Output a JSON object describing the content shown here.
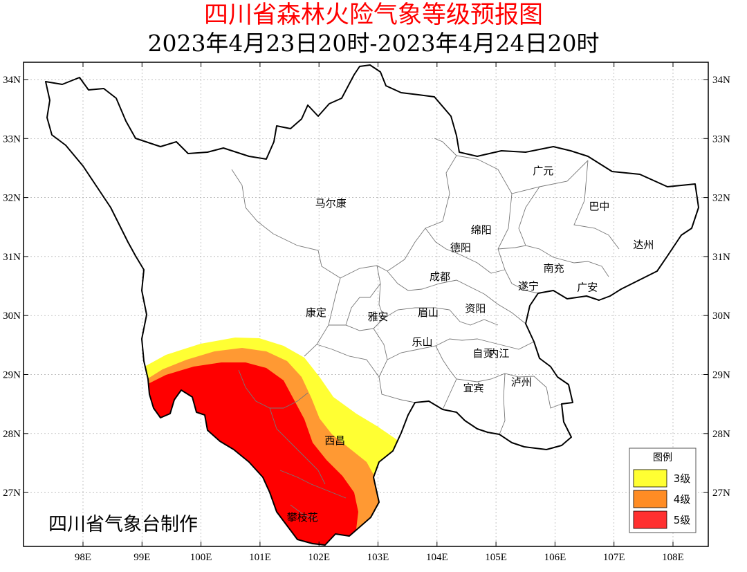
{
  "title": "四川省森林火险气象等级预报图",
  "subtitle": "2023年4月23日20时-2023年4月24日20时",
  "credit": "四川省气象台制作",
  "map": {
    "lon_ticks": [
      {
        "value": 98,
        "label": "98E"
      },
      {
        "value": 99,
        "label": "99E"
      },
      {
        "value": 100,
        "label": "100E"
      },
      {
        "value": 101,
        "label": "101E"
      },
      {
        "value": 102,
        "label": "102E"
      },
      {
        "value": 103,
        "label": "103E"
      },
      {
        "value": 104,
        "label": "104E"
      },
      {
        "value": 105,
        "label": "105E"
      },
      {
        "value": 106,
        "label": "106E"
      },
      {
        "value": 107,
        "label": "107E"
      },
      {
        "value": 108,
        "label": "108E"
      }
    ],
    "lat_ticks": [
      {
        "value": 34,
        "label": "34N"
      },
      {
        "value": 33,
        "label": "33N"
      },
      {
        "value": 32,
        "label": "32N"
      },
      {
        "value": 31,
        "label": "31N"
      },
      {
        "value": 30,
        "label": "30N"
      },
      {
        "value": 29,
        "label": "29N"
      },
      {
        "value": 28,
        "label": "28N"
      },
      {
        "value": 27,
        "label": "27N"
      }
    ],
    "cities": [
      {
        "name": "马尔康",
        "lon": 102.2,
        "lat": 31.9
      },
      {
        "name": "广元",
        "lon": 105.8,
        "lat": 32.45
      },
      {
        "name": "巴中",
        "lon": 106.75,
        "lat": 31.85
      },
      {
        "name": "绵阳",
        "lon": 104.75,
        "lat": 31.45
      },
      {
        "name": "达州",
        "lon": 107.5,
        "lat": 31.2
      },
      {
        "name": "德阳",
        "lon": 104.4,
        "lat": 31.15
      },
      {
        "name": "南充",
        "lon": 105.98,
        "lat": 30.8
      },
      {
        "name": "成都",
        "lon": 104.05,
        "lat": 30.66
      },
      {
        "name": "遂宁",
        "lon": 105.55,
        "lat": 30.5
      },
      {
        "name": "广安",
        "lon": 106.55,
        "lat": 30.48
      },
      {
        "name": "康定",
        "lon": 101.95,
        "lat": 30.05
      },
      {
        "name": "雅安",
        "lon": 103.0,
        "lat": 29.98
      },
      {
        "name": "眉山",
        "lon": 103.85,
        "lat": 30.05
      },
      {
        "name": "资阳",
        "lon": 104.65,
        "lat": 30.12
      },
      {
        "name": "乐山",
        "lon": 103.75,
        "lat": 29.55
      },
      {
        "name": "自贡",
        "lon": 104.78,
        "lat": 29.36
      },
      {
        "name": "内江",
        "lon": 105.05,
        "lat": 29.36
      },
      {
        "name": "宜宾",
        "lon": 104.62,
        "lat": 28.77
      },
      {
        "name": "泸州",
        "lon": 105.43,
        "lat": 28.87
      },
      {
        "name": "西昌",
        "lon": 102.27,
        "lat": 27.88
      },
      {
        "name": "攀枝花",
        "lon": 101.72,
        "lat": 26.58
      }
    ],
    "risk_colors": {
      "level3": "#ffff33",
      "level4": "#ff9933",
      "level5": "#ff0000"
    }
  },
  "legend": {
    "title": "图例",
    "items": [
      {
        "label": "3级",
        "color": "#ffff33"
      },
      {
        "label": "4级",
        "color": "#ff8c24"
      },
      {
        "label": "5级",
        "color": "#ff3030"
      }
    ]
  }
}
